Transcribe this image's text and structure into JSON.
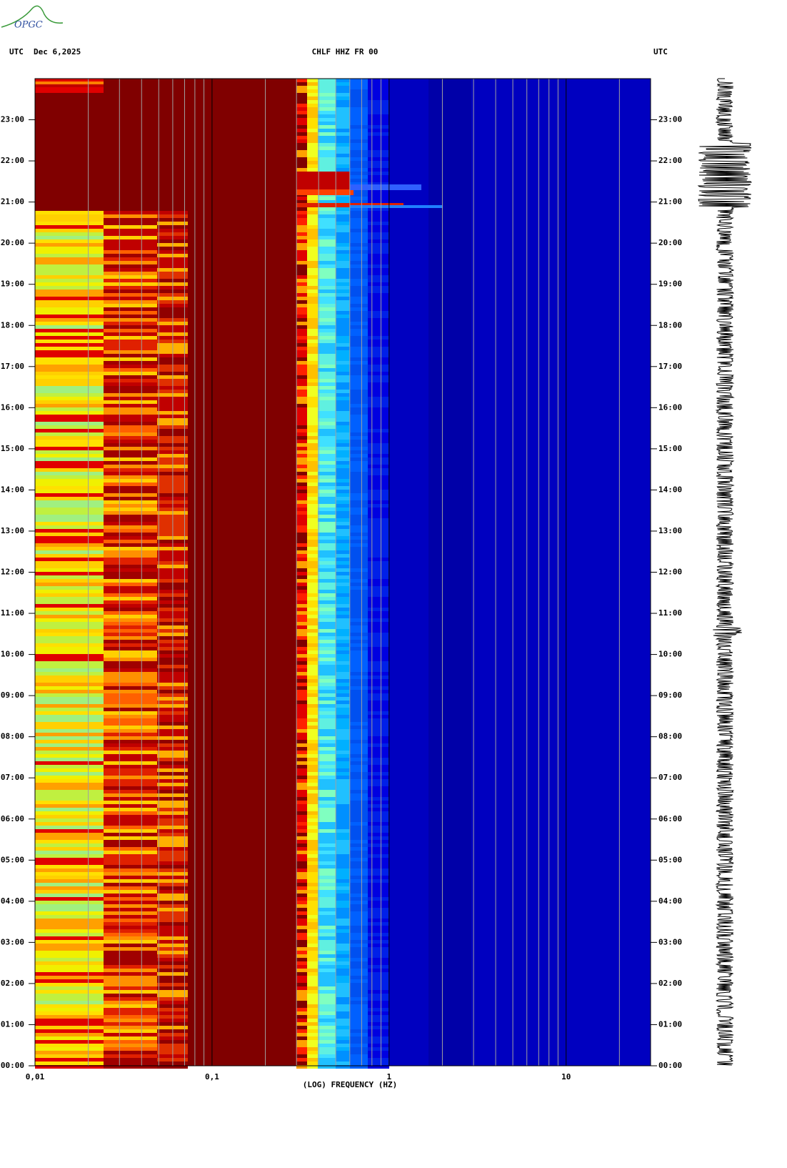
{
  "chart_data": {
    "type": "spectrogram",
    "logo": "OPGC",
    "header": {
      "left_label": "UTC",
      "date": "Dec 6,2025",
      "title": "CHLF HHZ FR 00",
      "right_label": "UTC"
    },
    "x_label": "(LOG) FREQUENCY (HZ)",
    "xscale": "log",
    "xlim": [
      0.01,
      30
    ],
    "xticks": [
      {
        "value": 0.01,
        "label": "0,01"
      },
      {
        "value": 0.1,
        "label": "0,1"
      },
      {
        "value": 1,
        "label": "1"
      },
      {
        "value": 10,
        "label": "10"
      }
    ],
    "xminorticks": [
      0.02,
      0.03,
      0.04,
      0.05,
      0.06,
      0.07,
      0.08,
      0.09,
      0.2,
      0.3,
      0.4,
      0.5,
      0.6,
      0.7,
      0.8,
      0.9,
      2,
      3,
      4,
      5,
      6,
      7,
      8,
      9,
      20
    ],
    "ylim": [
      0,
      24
    ],
    "yticks": [
      {
        "value": 0,
        "label": "00:00"
      },
      {
        "value": 1,
        "label": "01:00"
      },
      {
        "value": 2,
        "label": "02:00"
      },
      {
        "value": 3,
        "label": "03:00"
      },
      {
        "value": 4,
        "label": "04:00"
      },
      {
        "value": 5,
        "label": "05:00"
      },
      {
        "value": 6,
        "label": "06:00"
      },
      {
        "value": 7,
        "label": "07:00"
      },
      {
        "value": 8,
        "label": "08:00"
      },
      {
        "value": 9,
        "label": "09:00"
      },
      {
        "value": 10,
        "label": "10:00"
      },
      {
        "value": 11,
        "label": "11:00"
      },
      {
        "value": 12,
        "label": "12:00"
      },
      {
        "value": 13,
        "label": "13:00"
      },
      {
        "value": 14,
        "label": "14:00"
      },
      {
        "value": 15,
        "label": "15:00"
      },
      {
        "value": 16,
        "label": "16:00"
      },
      {
        "value": 17,
        "label": "17:00"
      },
      {
        "value": 18,
        "label": "18:00"
      },
      {
        "value": 19,
        "label": "19:00"
      },
      {
        "value": 20,
        "label": "20:00"
      },
      {
        "value": 21,
        "label": "21:00"
      },
      {
        "value": 22,
        "label": "22:00"
      },
      {
        "value": 23,
        "label": "23:00"
      }
    ]
  }
}
